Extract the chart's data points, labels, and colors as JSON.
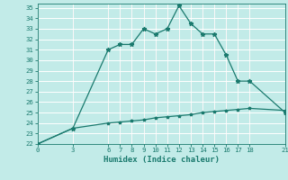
{
  "xlabel": "Humidex (Indice chaleur)",
  "background_color": "#c2ebe8",
  "grid_color": "#ffffff",
  "line_color": "#1a7a6e",
  "xlim": [
    0,
    21
  ],
  "ylim": [
    22,
    35.4
  ],
  "xticks": [
    0,
    3,
    6,
    7,
    8,
    9,
    10,
    11,
    12,
    13,
    14,
    15,
    16,
    17,
    18,
    21
  ],
  "yticks": [
    22,
    23,
    24,
    25,
    26,
    27,
    28,
    29,
    30,
    31,
    32,
    33,
    34,
    35
  ],
  "line1_x": [
    0,
    3,
    6,
    7,
    8,
    9,
    10,
    11,
    12,
    13,
    14,
    15,
    16,
    17,
    18,
    21
  ],
  "line1_y": [
    22.0,
    23.5,
    31.0,
    31.5,
    31.5,
    33.0,
    32.5,
    33.0,
    35.2,
    33.5,
    32.5,
    32.5,
    30.5,
    28.0,
    28.0,
    25.0
  ],
  "line2_x": [
    0,
    3,
    6,
    7,
    8,
    9,
    10,
    11,
    12,
    13,
    14,
    15,
    16,
    17,
    18,
    21
  ],
  "line2_y": [
    22.0,
    23.5,
    24.0,
    24.1,
    24.2,
    24.3,
    24.5,
    24.6,
    24.7,
    24.8,
    25.0,
    25.1,
    25.2,
    25.3,
    25.4,
    25.2
  ]
}
